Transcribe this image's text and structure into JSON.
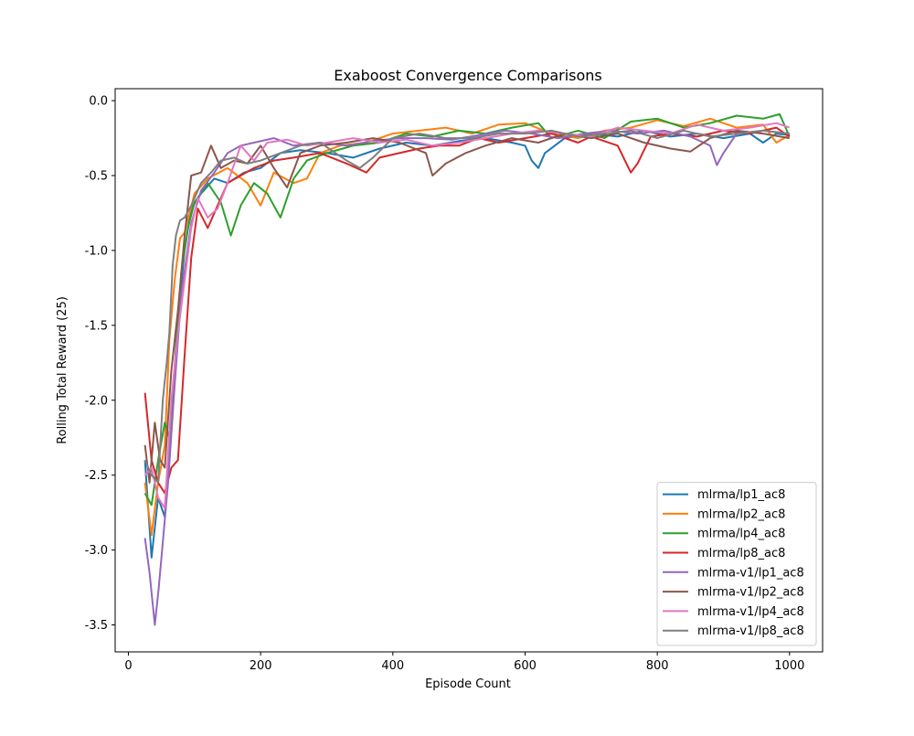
{
  "chart_data": {
    "type": "line",
    "title": "Exaboost Convergence Comparisons",
    "xlabel": "Episode Count",
    "ylabel": "Rolling Total Reward (25)",
    "xlim": [
      -20,
      1050
    ],
    "ylim": [
      -3.68,
      0.08
    ],
    "xticks": [
      0,
      200,
      400,
      600,
      800,
      1000
    ],
    "yticks": [
      0.0,
      -0.5,
      -1.0,
      -1.5,
      -2.0,
      -2.5,
      -3.0,
      -3.5
    ],
    "ytick_labels": [
      "0.0",
      "-0.5",
      "-1.0",
      "-1.5",
      "-2.0",
      "-2.5",
      "-3.0",
      "-3.5"
    ],
    "grid": false,
    "legend_position": "lower-right",
    "series": [
      {
        "name": "mlrma/lp1_ac8",
        "color": "#1f77b4",
        "points": [
          [
            25,
            -2.4
          ],
          [
            35,
            -3.05
          ],
          [
            45,
            -2.65
          ],
          [
            55,
            -2.78
          ],
          [
            65,
            -2.1
          ],
          [
            75,
            -1.45
          ],
          [
            85,
            -1.0
          ],
          [
            95,
            -0.72
          ],
          [
            110,
            -0.62
          ],
          [
            130,
            -0.52
          ],
          [
            150,
            -0.55
          ],
          [
            175,
            -0.48
          ],
          [
            200,
            -0.45
          ],
          [
            230,
            -0.35
          ],
          [
            260,
            -0.33
          ],
          [
            300,
            -0.35
          ],
          [
            340,
            -0.38
          ],
          [
            380,
            -0.32
          ],
          [
            420,
            -0.28
          ],
          [
            460,
            -0.3
          ],
          [
            500,
            -0.27
          ],
          [
            540,
            -0.25
          ],
          [
            580,
            -0.28
          ],
          [
            600,
            -0.3
          ],
          [
            610,
            -0.4
          ],
          [
            620,
            -0.45
          ],
          [
            630,
            -0.35
          ],
          [
            660,
            -0.25
          ],
          [
            700,
            -0.22
          ],
          [
            740,
            -0.24
          ],
          [
            780,
            -0.2
          ],
          [
            820,
            -0.24
          ],
          [
            860,
            -0.22
          ],
          [
            900,
            -0.25
          ],
          [
            940,
            -0.22
          ],
          [
            960,
            -0.28
          ],
          [
            980,
            -0.22
          ],
          [
            1000,
            -0.23
          ]
        ]
      },
      {
        "name": "mlrma/lp2_ac8",
        "color": "#ff7f0e",
        "points": [
          [
            25,
            -2.55
          ],
          [
            35,
            -2.9
          ],
          [
            45,
            -2.55
          ],
          [
            55,
            -2.3
          ],
          [
            62,
            -1.6
          ],
          [
            70,
            -1.2
          ],
          [
            78,
            -0.92
          ],
          [
            85,
            -0.88
          ],
          [
            100,
            -0.62
          ],
          [
            120,
            -0.52
          ],
          [
            150,
            -0.45
          ],
          [
            180,
            -0.55
          ],
          [
            200,
            -0.7
          ],
          [
            220,
            -0.48
          ],
          [
            250,
            -0.55
          ],
          [
            270,
            -0.52
          ],
          [
            290,
            -0.35
          ],
          [
            320,
            -0.3
          ],
          [
            360,
            -0.28
          ],
          [
            400,
            -0.22
          ],
          [
            440,
            -0.2
          ],
          [
            480,
            -0.18
          ],
          [
            520,
            -0.22
          ],
          [
            560,
            -0.16
          ],
          [
            600,
            -0.15
          ],
          [
            640,
            -0.22
          ],
          [
            680,
            -0.25
          ],
          [
            720,
            -0.2
          ],
          [
            760,
            -0.18
          ],
          [
            800,
            -0.13
          ],
          [
            840,
            -0.17
          ],
          [
            880,
            -0.12
          ],
          [
            920,
            -0.18
          ],
          [
            960,
            -0.16
          ],
          [
            980,
            -0.28
          ],
          [
            1000,
            -0.23
          ]
        ]
      },
      {
        "name": "mlrma/lp4_ac8",
        "color": "#2ca02c",
        "points": [
          [
            25,
            -2.62
          ],
          [
            35,
            -2.7
          ],
          [
            45,
            -2.4
          ],
          [
            55,
            -2.15
          ],
          [
            62,
            -2.25
          ],
          [
            70,
            -1.8
          ],
          [
            80,
            -1.15
          ],
          [
            90,
            -0.85
          ],
          [
            100,
            -0.68
          ],
          [
            120,
            -0.55
          ],
          [
            140,
            -0.68
          ],
          [
            155,
            -0.9
          ],
          [
            170,
            -0.7
          ],
          [
            190,
            -0.55
          ],
          [
            210,
            -0.62
          ],
          [
            230,
            -0.78
          ],
          [
            250,
            -0.52
          ],
          [
            270,
            -0.4
          ],
          [
            300,
            -0.35
          ],
          [
            340,
            -0.3
          ],
          [
            380,
            -0.28
          ],
          [
            420,
            -0.22
          ],
          [
            460,
            -0.24
          ],
          [
            500,
            -0.2
          ],
          [
            540,
            -0.22
          ],
          [
            580,
            -0.18
          ],
          [
            620,
            -0.15
          ],
          [
            640,
            -0.25
          ],
          [
            680,
            -0.2
          ],
          [
            720,
            -0.25
          ],
          [
            760,
            -0.14
          ],
          [
            800,
            -0.12
          ],
          [
            840,
            -0.18
          ],
          [
            880,
            -0.15
          ],
          [
            920,
            -0.1
          ],
          [
            960,
            -0.12
          ],
          [
            985,
            -0.09
          ],
          [
            1000,
            -0.24
          ]
        ]
      },
      {
        "name": "mlrma/lp8_ac8",
        "color": "#d62728",
        "points": [
          [
            25,
            -1.95
          ],
          [
            35,
            -2.4
          ],
          [
            45,
            -2.55
          ],
          [
            55,
            -2.62
          ],
          [
            65,
            -2.45
          ],
          [
            75,
            -2.4
          ],
          [
            85,
            -1.7
          ],
          [
            95,
            -1.05
          ],
          [
            105,
            -0.72
          ],
          [
            120,
            -0.85
          ],
          [
            135,
            -0.7
          ],
          [
            150,
            -0.55
          ],
          [
            170,
            -0.5
          ],
          [
            190,
            -0.45
          ],
          [
            220,
            -0.4
          ],
          [
            250,
            -0.38
          ],
          [
            290,
            -0.35
          ],
          [
            330,
            -0.42
          ],
          [
            360,
            -0.48
          ],
          [
            380,
            -0.38
          ],
          [
            410,
            -0.35
          ],
          [
            440,
            -0.32
          ],
          [
            470,
            -0.3
          ],
          [
            500,
            -0.3
          ],
          [
            530,
            -0.25
          ],
          [
            560,
            -0.28
          ],
          [
            600,
            -0.25
          ],
          [
            640,
            -0.22
          ],
          [
            680,
            -0.28
          ],
          [
            700,
            -0.24
          ],
          [
            740,
            -0.3
          ],
          [
            760,
            -0.48
          ],
          [
            770,
            -0.42
          ],
          [
            790,
            -0.24
          ],
          [
            820,
            -0.22
          ],
          [
            860,
            -0.24
          ],
          [
            900,
            -0.2
          ],
          [
            940,
            -0.22
          ],
          [
            980,
            -0.18
          ],
          [
            1000,
            -0.24
          ]
        ]
      },
      {
        "name": "mlrma-v1/lp1_ac8",
        "color": "#9467bd",
        "points": [
          [
            25,
            -2.92
          ],
          [
            32,
            -3.15
          ],
          [
            40,
            -3.5
          ],
          [
            46,
            -3.25
          ],
          [
            52,
            -2.95
          ],
          [
            60,
            -2.55
          ],
          [
            70,
            -1.9
          ],
          [
            80,
            -1.3
          ],
          [
            95,
            -0.82
          ],
          [
            110,
            -0.6
          ],
          [
            130,
            -0.48
          ],
          [
            150,
            -0.35
          ],
          [
            170,
            -0.3
          ],
          [
            190,
            -0.28
          ],
          [
            220,
            -0.25
          ],
          [
            250,
            -0.3
          ],
          [
            290,
            -0.28
          ],
          [
            330,
            -0.3
          ],
          [
            370,
            -0.27
          ],
          [
            410,
            -0.25
          ],
          [
            450,
            -0.25
          ],
          [
            490,
            -0.26
          ],
          [
            530,
            -0.23
          ],
          [
            570,
            -0.2
          ],
          [
            610,
            -0.22
          ],
          [
            650,
            -0.25
          ],
          [
            690,
            -0.22
          ],
          [
            730,
            -0.2
          ],
          [
            770,
            -0.22
          ],
          [
            810,
            -0.2
          ],
          [
            850,
            -0.24
          ],
          [
            880,
            -0.3
          ],
          [
            890,
            -0.43
          ],
          [
            900,
            -0.35
          ],
          [
            920,
            -0.22
          ],
          [
            960,
            -0.2
          ],
          [
            1000,
            -0.22
          ]
        ]
      },
      {
        "name": "mlrma-v1/lp2_ac8",
        "color": "#8c564b",
        "points": [
          [
            25,
            -2.3
          ],
          [
            32,
            -2.55
          ],
          [
            40,
            -2.15
          ],
          [
            48,
            -2.4
          ],
          [
            55,
            -2.45
          ],
          [
            65,
            -1.8
          ],
          [
            75,
            -1.4
          ],
          [
            85,
            -0.9
          ],
          [
            95,
            -0.5
          ],
          [
            110,
            -0.48
          ],
          [
            125,
            -0.3
          ],
          [
            140,
            -0.45
          ],
          [
            160,
            -0.4
          ],
          [
            180,
            -0.42
          ],
          [
            200,
            -0.3
          ],
          [
            220,
            -0.45
          ],
          [
            240,
            -0.58
          ],
          [
            260,
            -0.35
          ],
          [
            290,
            -0.3
          ],
          [
            330,
            -0.28
          ],
          [
            370,
            -0.25
          ],
          [
            410,
            -0.28
          ],
          [
            450,
            -0.35
          ],
          [
            460,
            -0.5
          ],
          [
            480,
            -0.42
          ],
          [
            510,
            -0.35
          ],
          [
            540,
            -0.3
          ],
          [
            580,
            -0.25
          ],
          [
            620,
            -0.28
          ],
          [
            660,
            -0.22
          ],
          [
            700,
            -0.25
          ],
          [
            740,
            -0.22
          ],
          [
            780,
            -0.28
          ],
          [
            820,
            -0.32
          ],
          [
            850,
            -0.34
          ],
          [
            880,
            -0.25
          ],
          [
            920,
            -0.2
          ],
          [
            960,
            -0.22
          ],
          [
            1000,
            -0.25
          ]
        ]
      },
      {
        "name": "mlrma-v1/lp4_ac8",
        "color": "#e377c2",
        "points": [
          [
            25,
            -2.5
          ],
          [
            35,
            -2.45
          ],
          [
            45,
            -2.65
          ],
          [
            55,
            -2.72
          ],
          [
            65,
            -2.0
          ],
          [
            75,
            -1.55
          ],
          [
            85,
            -1.2
          ],
          [
            95,
            -0.85
          ],
          [
            105,
            -0.65
          ],
          [
            120,
            -0.78
          ],
          [
            135,
            -0.72
          ],
          [
            150,
            -0.55
          ],
          [
            170,
            -0.3
          ],
          [
            190,
            -0.4
          ],
          [
            210,
            -0.28
          ],
          [
            240,
            -0.26
          ],
          [
            270,
            -0.3
          ],
          [
            300,
            -0.28
          ],
          [
            340,
            -0.25
          ],
          [
            380,
            -0.28
          ],
          [
            420,
            -0.26
          ],
          [
            460,
            -0.3
          ],
          [
            500,
            -0.28
          ],
          [
            540,
            -0.25
          ],
          [
            580,
            -0.22
          ],
          [
            620,
            -0.2
          ],
          [
            660,
            -0.22
          ],
          [
            700,
            -0.24
          ],
          [
            740,
            -0.18
          ],
          [
            780,
            -0.2
          ],
          [
            820,
            -0.22
          ],
          [
            860,
            -0.16
          ],
          [
            900,
            -0.2
          ],
          [
            940,
            -0.18
          ],
          [
            980,
            -0.15
          ],
          [
            1000,
            -0.18
          ]
        ]
      },
      {
        "name": "mlrma-v1/lp8_ac8",
        "color": "#7f7f7f",
        "points": [
          [
            25,
            -2.4
          ],
          [
            35,
            -2.5
          ],
          [
            45,
            -2.55
          ],
          [
            52,
            -2.0
          ],
          [
            58,
            -1.75
          ],
          [
            62,
            -1.55
          ],
          [
            67,
            -1.1
          ],
          [
            72,
            -0.9
          ],
          [
            78,
            -0.8
          ],
          [
            85,
            -0.78
          ],
          [
            95,
            -0.7
          ],
          [
            110,
            -0.55
          ],
          [
            125,
            -0.48
          ],
          [
            140,
            -0.4
          ],
          [
            160,
            -0.38
          ],
          [
            180,
            -0.42
          ],
          [
            200,
            -0.4
          ],
          [
            230,
            -0.35
          ],
          [
            260,
            -0.3
          ],
          [
            290,
            -0.28
          ],
          [
            330,
            -0.4
          ],
          [
            350,
            -0.45
          ],
          [
            370,
            -0.38
          ],
          [
            400,
            -0.25
          ],
          [
            440,
            -0.22
          ],
          [
            480,
            -0.25
          ],
          [
            520,
            -0.25
          ],
          [
            560,
            -0.22
          ],
          [
            600,
            -0.22
          ],
          [
            640,
            -0.2
          ],
          [
            680,
            -0.24
          ],
          [
            720,
            -0.22
          ],
          [
            760,
            -0.2
          ],
          [
            800,
            -0.25
          ],
          [
            840,
            -0.2
          ],
          [
            880,
            -0.24
          ],
          [
            920,
            -0.22
          ],
          [
            960,
            -0.2
          ],
          [
            1000,
            -0.22
          ]
        ]
      }
    ]
  }
}
